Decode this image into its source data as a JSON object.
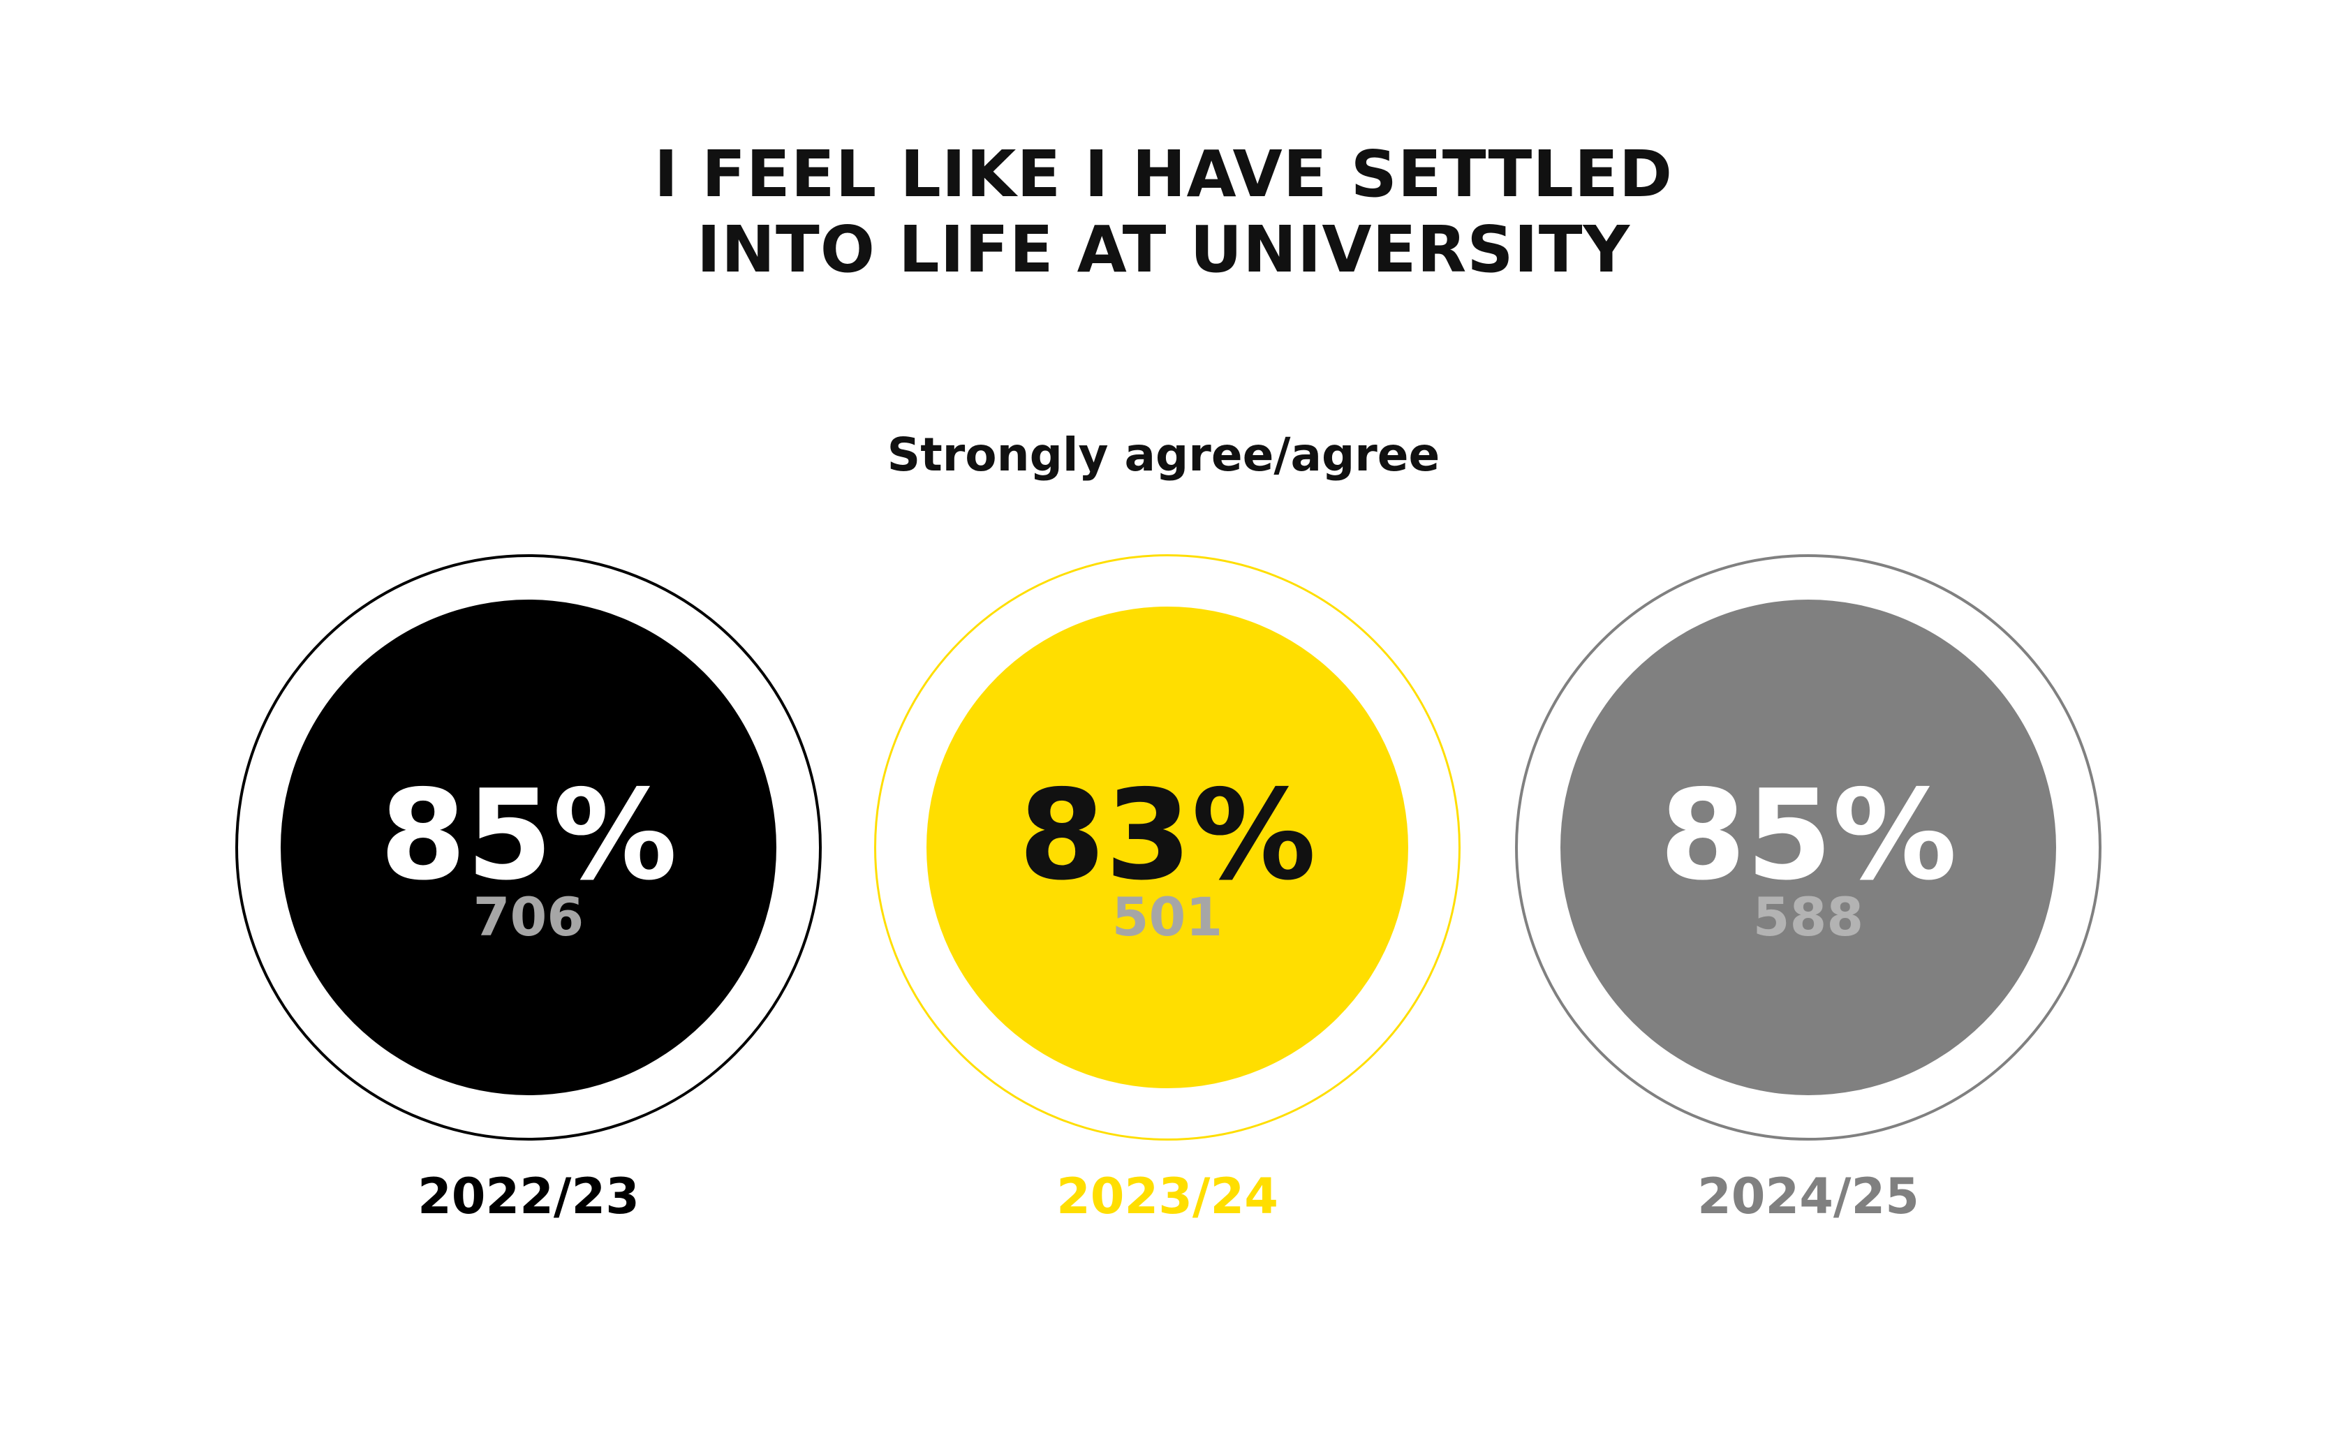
{
  "title": {
    "line1": "I FEEL LIKE I HAVE SETTLED",
    "line2": "INTO LIFE AT UNIVERSITY"
  },
  "subtitle": "Strongly agree/agree",
  "chart_data": {
    "type": "bar",
    "title": "I FEEL LIKE I HAVE SETTLED INTO LIFE AT UNIVERSITY",
    "subtitle": "Strongly agree/agree",
    "categories": [
      "2022/23",
      "2023/24",
      "2024/25"
    ],
    "values": [
      85,
      83,
      85
    ],
    "counts": [
      706,
      501,
      588
    ],
    "items": [
      {
        "year": "2022/23",
        "percent": "85%",
        "count": "706",
        "ring_color": "#000000",
        "fill_color": "#000000",
        "percent_color": "#ffffff",
        "count_color": "#a6a6a6",
        "year_color": "#000000"
      },
      {
        "year": "2023/24",
        "percent": "83%",
        "count": "501",
        "ring_color": "#ffde00",
        "fill_color": "#ffde00",
        "percent_color": "#111111",
        "count_color": "#a6a6a6",
        "year_color": "#ffde00"
      },
      {
        "year": "2024/25",
        "percent": "85%",
        "count": "588",
        "ring_color": "#808080",
        "fill_color": "#808080",
        "percent_color": "#ffffff",
        "count_color": "#b3b3b3",
        "year_color": "#808080"
      }
    ]
  }
}
